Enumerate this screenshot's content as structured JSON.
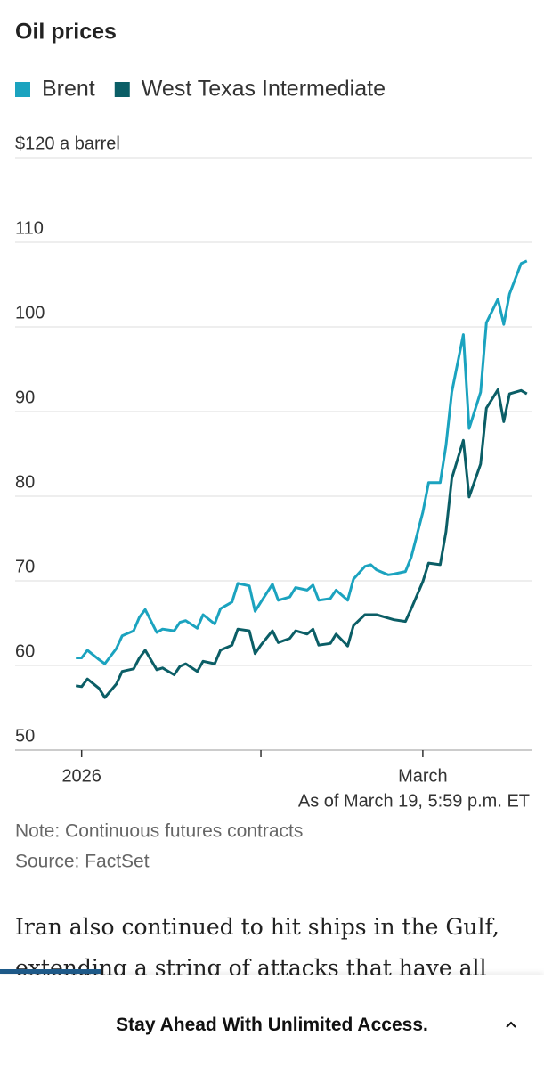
{
  "chart_data": {
    "type": "line",
    "title": "Oil prices",
    "x": [
      -1,
      0,
      1,
      3,
      4,
      6,
      7,
      9,
      10,
      11,
      13,
      14,
      16,
      17,
      18,
      20,
      21,
      23,
      24,
      26,
      27,
      29,
      30,
      31,
      33,
      34,
      36,
      37,
      39,
      40,
      41,
      43,
      44,
      46,
      47,
      49,
      50,
      51,
      53,
      54,
      56,
      57,
      59,
      60,
      62,
      63,
      64,
      66,
      67,
      69,
      70,
      72,
      73,
      74,
      76,
      77
    ],
    "series": [
      {
        "name": "Brent",
        "color": "#1ba3bf",
        "values": [
          60.9,
          60.9,
          61.8,
          60.7,
          60.2,
          62.0,
          63.5,
          64.1,
          65.7,
          66.6,
          63.9,
          64.3,
          64.1,
          65.1,
          65.3,
          64.4,
          66.0,
          64.9,
          66.7,
          67.5,
          69.7,
          69.4,
          66.4,
          67.5,
          69.6,
          67.7,
          68.1,
          69.2,
          68.9,
          69.5,
          67.7,
          67.9,
          68.9,
          67.7,
          70.2,
          71.7,
          71.9,
          71.3,
          70.7,
          70.8,
          71.1,
          72.8,
          78.1,
          81.6,
          81.6,
          86.0,
          92.3,
          99.1,
          88.0,
          92.3,
          100.5,
          103.3,
          100.3,
          103.9,
          107.5,
          107.8
        ]
      },
      {
        "name": "West Texas Intermediate",
        "color": "#0b5e66",
        "values": [
          57.6,
          57.5,
          58.4,
          57.3,
          56.2,
          57.8,
          59.3,
          59.6,
          60.9,
          61.8,
          59.5,
          59.7,
          58.9,
          59.9,
          60.2,
          59.3,
          60.5,
          60.2,
          61.8,
          62.4,
          64.3,
          64.1,
          61.4,
          62.4,
          64.1,
          62.7,
          63.2,
          64.1,
          63.7,
          64.3,
          62.4,
          62.6,
          63.7,
          62.3,
          64.7,
          66.0,
          66.0,
          66.0,
          65.6,
          65.4,
          65.2,
          66.7,
          69.9,
          72.1,
          71.9,
          75.8,
          82.1,
          86.6,
          79.9,
          83.8,
          90.4,
          92.6,
          88.8,
          92.1,
          92.5,
          92.1
        ]
      }
    ],
    "xlim": [
      -11.5,
      77.8
    ],
    "xticks": [
      {
        "value": 0,
        "label": "2026"
      },
      {
        "value": 59,
        "label": "March"
      }
    ],
    "xminor_ticks": [
      31
    ],
    "ylim": [
      50,
      122
    ],
    "yticks": [
      50,
      60,
      70,
      80,
      90,
      100,
      110,
      {
        "value": 120,
        "label": "$120 a barrel"
      }
    ],
    "grid": true,
    "annotation": "As of March 19, 5:59 p.m. ET",
    "note": "Note: Continuous futures contracts",
    "source": "Source: FactSet"
  },
  "article": {
    "paragraph": "Iran also continued to hit ships in the Gulf, extending a string of attacks that have all"
  },
  "banner": {
    "text": "Stay Ahead With Unlimited Access."
  }
}
